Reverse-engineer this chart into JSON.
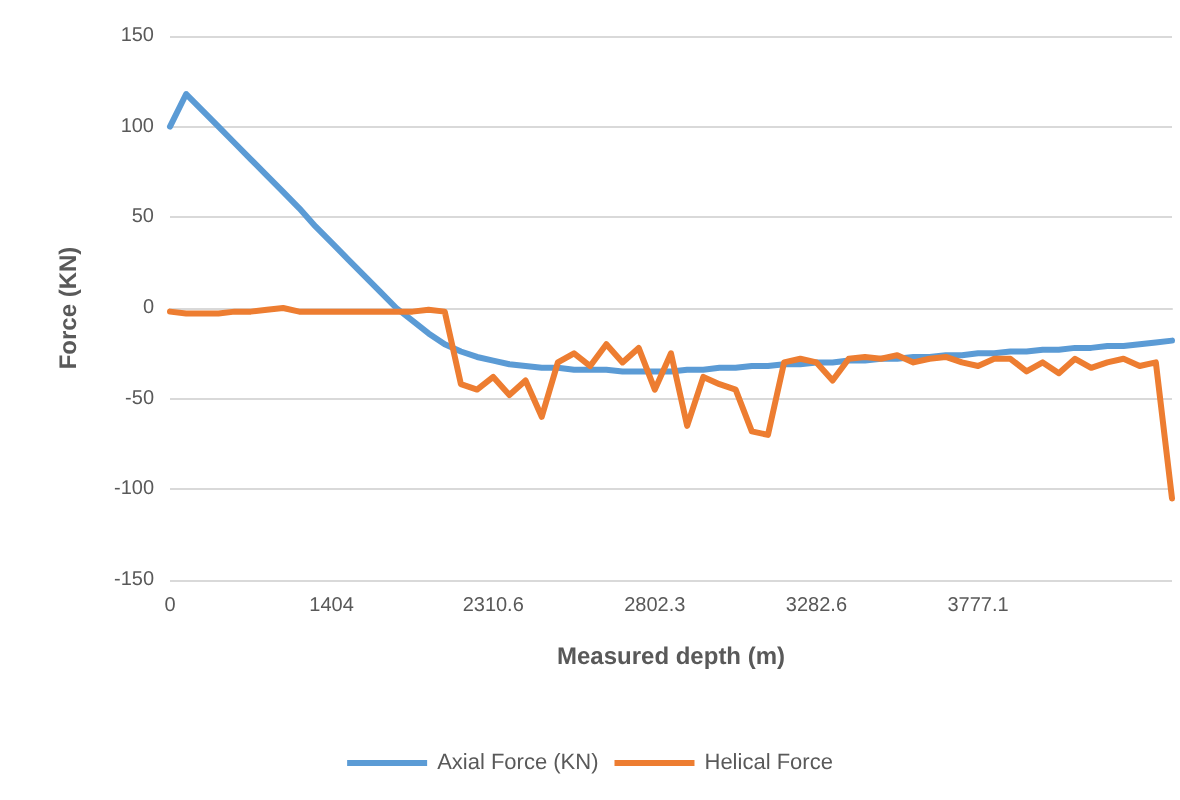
{
  "chart_data": {
    "type": "line",
    "xlabel": "Measured depth (m)",
    "ylabel": "Force (KN)",
    "categories": [
      "0",
      null,
      null,
      null,
      null,
      null,
      null,
      null,
      null,
      null,
      "1404",
      null,
      null,
      null,
      null,
      null,
      null,
      null,
      null,
      null,
      "2310.6",
      null,
      null,
      null,
      null,
      null,
      null,
      null,
      null,
      null,
      "2802.3",
      null,
      null,
      null,
      null,
      null,
      null,
      null,
      null,
      null,
      "3282.6",
      null,
      null,
      null,
      null,
      null,
      null,
      null,
      null,
      null,
      "3777.1",
      null,
      null,
      null,
      null,
      null,
      null,
      null,
      null,
      null,
      null,
      null,
      null
    ],
    "series": [
      {
        "name": "Axial Force (KN)",
        "color": "#5b9bd5",
        "values": [
          100,
          118,
          109,
          100,
          91,
          82,
          73,
          64,
          55,
          45,
          36,
          27,
          18,
          9,
          0,
          -7,
          -14,
          -20,
          -24,
          -27,
          -29,
          -31,
          -32,
          -33,
          -33,
          -34,
          -34,
          -34,
          -35,
          -35,
          -35,
          -35,
          -34,
          -34,
          -33,
          -33,
          -32,
          -32,
          -31,
          -31,
          -30,
          -30,
          -29,
          -29,
          -28,
          -28,
          -27,
          -27,
          -26,
          -26,
          -25,
          -25,
          -24,
          -24,
          -23,
          -23,
          -22,
          -22,
          -21,
          -21,
          -20,
          -19,
          -18
        ]
      },
      {
        "name": "Helical Force",
        "color": "#ed7d31",
        "values": [
          -2,
          -3,
          -3,
          -3,
          -2,
          -2,
          -1,
          0,
          -2,
          -2,
          -2,
          -2,
          -2,
          -2,
          -2,
          -2,
          -1,
          -2,
          -42,
          -45,
          -38,
          -48,
          -40,
          -60,
          -30,
          -25,
          -32,
          -20,
          -30,
          -22,
          -45,
          -25,
          -65,
          -38,
          -42,
          -45,
          -68,
          -70,
          -30,
          -28,
          -30,
          -40,
          -28,
          -27,
          -28,
          -26,
          -30,
          -28,
          -27,
          -30,
          -32,
          -28,
          -28,
          -35,
          -30,
          -36,
          -28,
          -33,
          -30,
          -28,
          -32,
          -30,
          -105
        ]
      }
    ],
    "ylim": [
      -150,
      150
    ],
    "yticks": [
      -150,
      -100,
      -50,
      0,
      50,
      100,
      150
    ],
    "grid": "y",
    "legend": "bottom",
    "marker": "none",
    "line_style": "solid"
  }
}
